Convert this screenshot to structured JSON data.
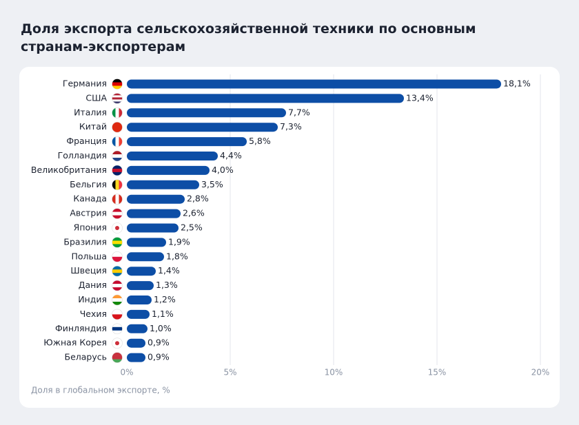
{
  "chart_data": {
    "type": "bar",
    "orientation": "horizontal",
    "title": "Доля экспорта сельскохозяйственной техники по основным странам-экспортерам",
    "x_label": "Доля в глобальном экспорте, %",
    "categories": [
      "Германия",
      "США",
      "Италия",
      "Китай",
      "Франция",
      "Голландия",
      "Великобритания",
      "Бельгия",
      "Канада",
      "Австрия",
      "Япония",
      "Бразилия",
      "Польша",
      "Швеция",
      "Дания",
      "Индия",
      "Чехия",
      "Финляндия",
      "Южная Корея",
      "Беларусь"
    ],
    "values": [
      18.1,
      13.4,
      7.7,
      7.3,
      5.8,
      4.4,
      4.0,
      3.5,
      2.8,
      2.6,
      2.5,
      1.9,
      1.8,
      1.4,
      1.3,
      1.2,
      1.1,
      1.0,
      0.9,
      0.9
    ],
    "value_labels": [
      "18,1%",
      "13,4%",
      "7,7%",
      "7,3%",
      "5,8%",
      "4,4%",
      "4,0%",
      "3,5%",
      "2,8%",
      "2,6%",
      "2,5%",
      "1,9%",
      "1,8%",
      "1,4%",
      "1,3%",
      "1,2%",
      "1,1%",
      "1,0%",
      "0,9%",
      "0,9%"
    ],
    "color": "#0d4ea6",
    "xlim": [
      0,
      20
    ],
    "xticks": [
      {
        "value": 0,
        "label": "0%"
      },
      {
        "value": 5,
        "label": "5%"
      },
      {
        "value": 10,
        "label": "10%"
      },
      {
        "value": 15,
        "label": "15%"
      },
      {
        "value": 20,
        "label": "20%"
      }
    ],
    "grid": true
  }
}
